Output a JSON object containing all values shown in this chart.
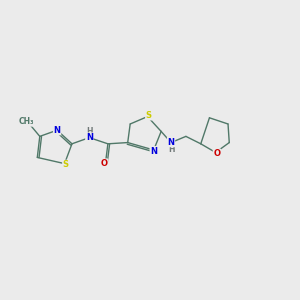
{
  "background_color": "#ebebeb",
  "bond_color": "#507868",
  "atom_colors": {
    "N": "#0000dd",
    "S": "#cccc00",
    "O": "#cc0000",
    "C": "#507868",
    "H": "#707878"
  },
  "font_size": 6.0,
  "figsize": [
    3.0,
    3.0
  ],
  "dpi": 100,
  "lw": 1.0
}
